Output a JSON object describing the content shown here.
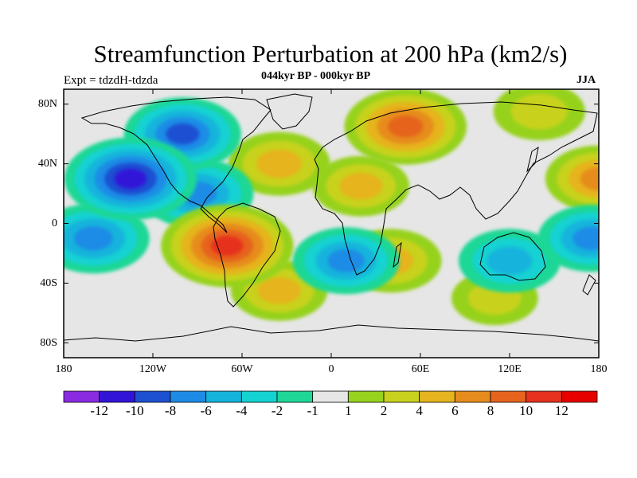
{
  "title": "Streamfunction Perturbation at 200 hPa (km2/s)",
  "experiment": "Expt = tdzdH-tdzda",
  "subtitle": "044kyr BP - 000kyr BP",
  "season": "JJA",
  "lat_labels": [
    "80N",
    "40N",
    "0",
    "40S",
    "80S"
  ],
  "lon_labels": [
    "180",
    "120W",
    "60W",
    "0",
    "60E",
    "120E",
    "180"
  ],
  "colorbar": {
    "labels": [
      "-12",
      "-10",
      "-8",
      "-6",
      "-4",
      "-2",
      "-1",
      "1",
      "2",
      "4",
      "6",
      "8",
      "10",
      "12"
    ],
    "colors": [
      "#8a2be2",
      "#3214d8",
      "#1e50d2",
      "#1e8ce6",
      "#14b4dc",
      "#14d2d2",
      "#1ed796",
      "#e6e6e6",
      "#96d21e",
      "#c8d21e",
      "#e6b41e",
      "#e68c1e",
      "#e6641e",
      "#e6321e",
      "#e60000"
    ]
  },
  "chart_data": {
    "type": "heatmap",
    "title": "Streamfunction Perturbation at 200 hPa (km2/s)",
    "variable": "streamfunction perturbation",
    "units": "km2/s",
    "level_hPa": 200,
    "difference": "044kyr BP - 000kyr BP",
    "season": "JJA",
    "x_range": [
      -180,
      180
    ],
    "y_range": [
      -90,
      90
    ],
    "contour_levels": [
      -12,
      -10,
      -8,
      -6,
      -4,
      -2,
      -1,
      1,
      2,
      4,
      6,
      8,
      10,
      12
    ],
    "features": [
      {
        "lon": -100,
        "lat": 60,
        "value": -8
      },
      {
        "lon": -135,
        "lat": 30,
        "value": -11
      },
      {
        "lon": -90,
        "lat": 20,
        "value": -7
      },
      {
        "lon": -160,
        "lat": -10,
        "value": -7
      },
      {
        "lon": -70,
        "lat": -15,
        "value": 11
      },
      {
        "lon": 50,
        "lat": 65,
        "value": 9
      },
      {
        "lon": -35,
        "lat": 40,
        "value": 5
      },
      {
        "lon": 20,
        "lat": 25,
        "value": 4
      },
      {
        "lon": -35,
        "lat": -45,
        "value": 4
      },
      {
        "lon": 180,
        "lat": 30,
        "value": 6
      },
      {
        "lon": 140,
        "lat": 75,
        "value": 3
      },
      {
        "lon": 10,
        "lat": -25,
        "value": -6
      },
      {
        "lon": 40,
        "lat": -25,
        "value": 5
      },
      {
        "lon": 120,
        "lat": -25,
        "value": -5
      },
      {
        "lon": 175,
        "lat": -10,
        "value": -6
      },
      {
        "lon": 110,
        "lat": -50,
        "value": 2
      }
    ]
  }
}
